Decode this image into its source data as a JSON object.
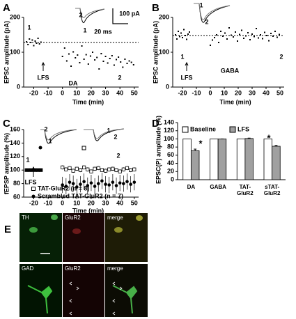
{
  "chart_data": [
    {
      "type": "scatter",
      "panel": "A",
      "ylabel": "EPSC amplitude (pA)",
      "xlabel": "Time (min)",
      "xlim": [
        -27,
        53
      ],
      "ylim": [
        0,
        200
      ],
      "xticks": [
        -20,
        -10,
        0,
        10,
        20,
        30,
        40,
        50
      ],
      "yticks": [
        0,
        100,
        200
      ],
      "reference_line": 128,
      "series": [
        {
          "color": "#000000",
          "marker": "square",
          "x": [
            -25,
            -24,
            -23,
            -22,
            -21,
            -20,
            -19,
            -18,
            -17,
            -16,
            -15,
            0,
            1.5,
            3,
            4.5,
            6,
            7.5,
            9,
            10.5,
            12,
            13.5,
            15,
            16.5,
            18,
            19.5,
            21,
            22.5,
            24,
            25.5,
            27,
            28.5,
            30,
            31.5,
            33,
            34.5,
            36,
            37.5,
            39,
            40.5,
            42,
            43.5,
            45,
            46.5,
            48,
            49.5
          ],
          "values": [
            130,
            122,
            138,
            128,
            135,
            119,
            132,
            126,
            140,
            124,
            129,
            88,
            112,
            75,
            95,
            60,
            101,
            84,
            92,
            70,
            118,
            80,
            93,
            66,
            89,
            100,
            78,
            85,
            52,
            96,
            74,
            88,
            69,
            82,
            90,
            63,
            79,
            86,
            72,
            57,
            80,
            68,
            75,
            71,
            64
          ]
        }
      ],
      "annotations": [
        "1",
        "2",
        "LFS",
        "DA",
        "2",
        "1",
        "100 pA",
        "20 ms"
      ]
    },
    {
      "type": "scatter",
      "panel": "B",
      "ylabel": "EPSC amplitude (pA)",
      "xlabel": "Time (min)",
      "xlim": [
        -27,
        53
      ],
      "ylim": [
        0,
        200
      ],
      "xticks": [
        -20,
        -10,
        0,
        10,
        20,
        30,
        40,
        50
      ],
      "yticks": [
        0,
        100,
        200
      ],
      "reference_line": 148,
      "series": [
        {
          "color": "#000000",
          "marker": "square",
          "x": [
            -25,
            -24,
            -23,
            -22,
            -21,
            -20,
            -19,
            -18,
            -17,
            -16,
            -15,
            0,
            1.5,
            3,
            4.5,
            6,
            7.5,
            9,
            10.5,
            12,
            13.5,
            15,
            16.5,
            18,
            19.5,
            21,
            22.5,
            24,
            25.5,
            27,
            28.5,
            30,
            31.5,
            33,
            34.5,
            36,
            37.5,
            39,
            40.5,
            42,
            43.5,
            45,
            46.5,
            48,
            49.5
          ],
          "values": [
            150,
            138,
            160,
            145,
            155,
            142,
            165,
            148,
            137,
            152,
            158,
            120,
            135,
            142,
            150,
            128,
            160,
            146,
            155,
            138,
            170,
            149,
            144,
            158,
            132,
            151,
            163,
            140,
            147,
            156,
            136,
            152,
            145,
            168,
            141,
            150,
            139,
            157,
            148,
            133,
            154,
            146,
            160,
            143,
            151
          ]
        }
      ],
      "annotations": [
        "1",
        "2",
        "LFS",
        "GABA",
        "1",
        "2"
      ]
    },
    {
      "type": "scatter",
      "panel": "C",
      "ylabel": "fEPSP amplitude (%)",
      "xlabel": "Time (min)",
      "xlim": [
        -27,
        53
      ],
      "ylim": [
        60,
        160
      ],
      "xticks": [
        -20,
        -10,
        0,
        10,
        20,
        30,
        40,
        50
      ],
      "yticks": [
        60,
        80,
        100,
        120,
        140,
        160
      ],
      "series": [
        {
          "name": "TAT-GluR2 (n = 8)",
          "color": "#000000",
          "marker": "square_open",
          "x": [
            -25,
            -23,
            -21,
            -19,
            -17,
            -15,
            0,
            2.5,
            5,
            7.5,
            10,
            12.5,
            15,
            17.5,
            20,
            22.5,
            25,
            27.5,
            30,
            32.5,
            35,
            37.5,
            40,
            42.5,
            45,
            47.5,
            50
          ],
          "values": [
            100,
            100,
            100,
            100,
            100,
            100,
            104,
            101,
            103,
            99,
            102,
            100,
            104,
            101,
            98,
            102,
            103,
            100,
            99,
            101,
            102,
            100,
            98,
            101,
            103,
            100,
            101
          ],
          "errors": [
            1,
            1,
            1,
            1,
            1,
            1,
            3,
            3,
            3,
            3,
            3,
            3,
            3,
            3,
            3,
            3,
            3,
            3,
            3,
            3,
            3,
            3,
            3,
            3,
            3,
            3,
            3
          ]
        },
        {
          "name": "Scrambled TAT-GluR2 (n = 7)",
          "color": "#000000",
          "marker": "circle",
          "x": [
            -25,
            -23,
            -21,
            -19,
            -17,
            -15,
            0,
            2.5,
            5,
            7.5,
            10,
            12.5,
            15,
            17.5,
            20,
            22.5,
            25,
            27.5,
            30,
            32.5,
            35,
            37.5,
            40,
            42.5,
            45,
            47.5,
            50
          ],
          "values": [
            100,
            100,
            100,
            100,
            100,
            100,
            78,
            76,
            82,
            80,
            75,
            79,
            83,
            77,
            81,
            76,
            80,
            84,
            79,
            78,
            82,
            77,
            81,
            80,
            83,
            79,
            82
          ],
          "errors": [
            1,
            1,
            1,
            1,
            1,
            1,
            12,
            12,
            12,
            12,
            12,
            12,
            12,
            12,
            12,
            12,
            12,
            12,
            12,
            12,
            12,
            12,
            12,
            12,
            12,
            12,
            12
          ]
        }
      ],
      "annotations": [
        "1",
        "2",
        "LFS",
        "2",
        "1",
        "1",
        "2"
      ]
    },
    {
      "type": "bar",
      "panel": "D",
      "ylabel": "EPSC(P) amplitude (%)",
      "categories": [
        "DA",
        "GABA",
        "TAT-GluR2",
        "sTAT-GluR2"
      ],
      "ylim": [
        0,
        140
      ],
      "yticks": [
        0,
        20,
        40,
        60,
        80,
        100,
        120,
        140
      ],
      "legend": "top",
      "series": [
        {
          "name": "Baseline",
          "color": "#ffffff",
          "values": [
            100,
            100,
            100,
            100
          ]
        },
        {
          "name": "LFS",
          "color": "#a0a0a0",
          "values": [
            71,
            100,
            101,
            82
          ],
          "errors": [
            4,
            0,
            1,
            2
          ]
        }
      ],
      "annotations": [
        "*",
        "*"
      ]
    }
  ],
  "panel_e": {
    "label": "E",
    "rows": [
      [
        "TH",
        "GluR2",
        "merge"
      ],
      [
        "GAD",
        "GluR2",
        "merge"
      ]
    ]
  }
}
